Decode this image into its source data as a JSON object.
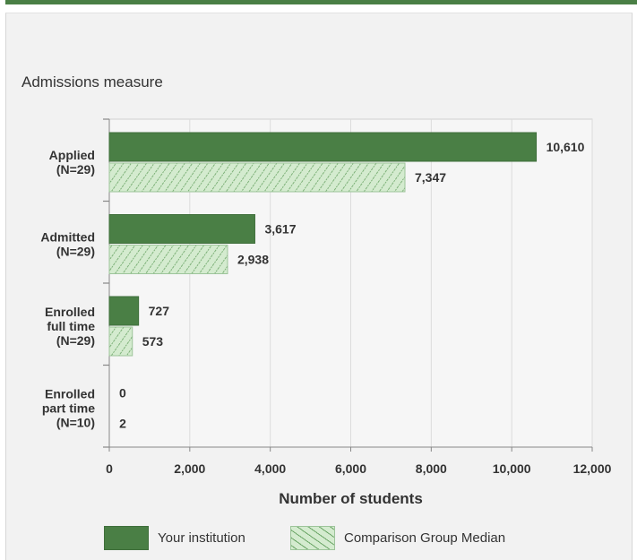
{
  "chart_data": {
    "type": "bar",
    "orientation": "horizontal",
    "title": "Admissions measure",
    "categories": [
      [
        "Applied",
        "(N=29)"
      ],
      [
        "Admitted",
        "(N=29)"
      ],
      [
        "Enrolled",
        "full time",
        "(N=29)"
      ],
      [
        "Enrolled",
        "part time",
        "(N=10)"
      ]
    ],
    "series": [
      {
        "name": "Your institution",
        "values": [
          10610,
          3617,
          727,
          0
        ],
        "labels": [
          "10,610",
          "3,617",
          "727",
          "0"
        ]
      },
      {
        "name": "Comparison Group Median",
        "values": [
          7347,
          2938,
          573,
          2
        ],
        "labels": [
          "7,347",
          "2,938",
          "573",
          "2"
        ]
      }
    ],
    "xlabel": "Number of students",
    "ylabel": "",
    "xlim": [
      0,
      12000
    ],
    "xticks": [
      "0",
      "2,000",
      "4,000",
      "6,000",
      "8,000",
      "10,000",
      "12,000"
    ],
    "grid": true,
    "legend_position": "bottom",
    "colors": {
      "primary": "#4a7f45",
      "comparison_fill": "#d4ebcf",
      "comparison_hatch": "#6aa465",
      "plot_bg": "#f6f6f6"
    }
  },
  "legend": {
    "primary_label": "Your institution",
    "comparison_label": "Comparison Group Median"
  }
}
